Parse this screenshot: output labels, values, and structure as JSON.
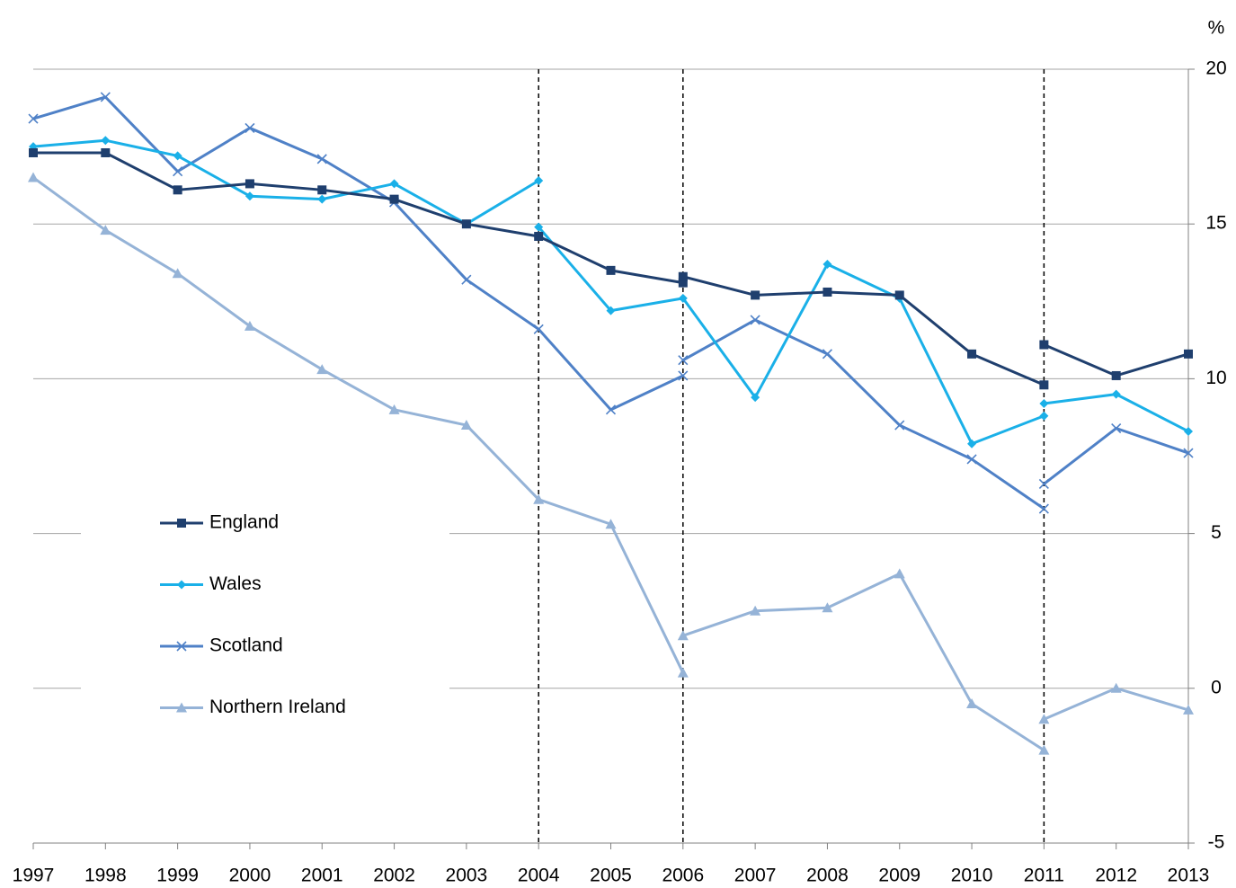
{
  "chart_data": {
    "type": "line",
    "y_unit": "%",
    "xlim": [
      1997,
      2013
    ],
    "xticks": [
      1997,
      1998,
      1999,
      2000,
      2001,
      2002,
      2003,
      2004,
      2005,
      2006,
      2007,
      2008,
      2009,
      2010,
      2011,
      2012,
      2013
    ],
    "ylim": [
      -5,
      20
    ],
    "yticks": [
      -5,
      0,
      5,
      10,
      15,
      20
    ],
    "grid": true,
    "break_lines": [
      2004,
      2006,
      2011
    ],
    "legend": "left",
    "series": [
      {
        "name": "England",
        "color": "#1f3f6e",
        "marker": "square",
        "x": [
          1997,
          1998,
          1999,
          2000,
          2001,
          2002,
          2003,
          2004,
          2005,
          2006,
          null,
          2006,
          2007,
          2008,
          2009,
          2010,
          2011,
          null,
          2011,
          2012,
          2013
        ],
        "values": [
          17.3,
          17.3,
          16.1,
          16.3,
          16.1,
          15.8,
          15.0,
          14.6,
          13.5,
          13.1,
          null,
          13.3,
          12.7,
          12.8,
          12.7,
          10.8,
          9.8,
          null,
          11.1,
          10.1,
          10.8
        ]
      },
      {
        "name": "Wales",
        "color": "#1ab0e8",
        "marker": "diamond",
        "x": [
          1997,
          1998,
          1999,
          2000,
          2001,
          2002,
          2003,
          2004,
          null,
          2004,
          2005,
          2006,
          2007,
          2008,
          2009,
          2010,
          2011,
          null,
          2011,
          2012,
          2013
        ],
        "values": [
          17.5,
          17.7,
          17.2,
          15.9,
          15.8,
          16.3,
          15.0,
          16.4,
          null,
          14.9,
          12.2,
          12.6,
          9.4,
          13.7,
          12.6,
          7.9,
          8.8,
          null,
          9.2,
          9.5,
          8.3
        ]
      },
      {
        "name": "Scotland",
        "color": "#4f81c7",
        "marker": "x",
        "x": [
          1997,
          1998,
          1999,
          2000,
          2001,
          2002,
          2003,
          2004,
          2005,
          2006,
          null,
          2006,
          2007,
          2008,
          2009,
          2010,
          2011,
          null,
          2011,
          2012,
          2013
        ],
        "values": [
          18.4,
          19.1,
          16.7,
          18.1,
          17.1,
          15.7,
          13.2,
          11.6,
          9.0,
          10.1,
          null,
          10.6,
          11.9,
          10.8,
          8.5,
          7.4,
          5.8,
          null,
          6.6,
          8.4,
          7.6
        ]
      },
      {
        "name": "Northern Ireland",
        "color": "#95b3d7",
        "marker": "triangle",
        "x": [
          1997,
          1998,
          1999,
          2000,
          2001,
          2002,
          2003,
          2004,
          2005,
          2006,
          null,
          2006,
          2007,
          2008,
          2009,
          2010,
          2011,
          null,
          2011,
          2012,
          2013
        ],
        "values": [
          16.5,
          14.8,
          13.4,
          11.7,
          10.3,
          9.0,
          8.5,
          6.1,
          5.3,
          0.5,
          null,
          1.7,
          2.5,
          2.6,
          3.7,
          -0.5,
          -2.0,
          null,
          -1.0,
          0.0,
          -0.7
        ]
      }
    ]
  }
}
